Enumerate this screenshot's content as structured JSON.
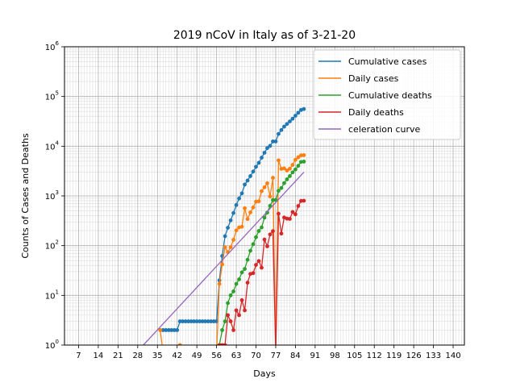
{
  "chart_data": {
    "type": "line",
    "title": "2019 nCoV in Italy as of 3-21-20",
    "xlabel": "Days",
    "ylabel": "Counts of Cases and Deaths",
    "xlim": [
      2,
      144
    ],
    "ylim": [
      1,
      1000000
    ],
    "yscale": "log",
    "grid": true,
    "legend_position": "top-right",
    "x_ticks": [
      7,
      14,
      21,
      28,
      35,
      42,
      49,
      56,
      63,
      70,
      77,
      84,
      91,
      98,
      105,
      112,
      119,
      126,
      133,
      140
    ],
    "x_tick_labels": [
      "7",
      "14",
      "21",
      "28",
      "35",
      "42",
      "49",
      "56",
      "63",
      "70",
      "77",
      "84",
      "91",
      "98",
      "105",
      "112",
      "119",
      "126",
      "133",
      "140"
    ],
    "y_ticks": [
      1,
      10,
      100,
      1000,
      10000,
      100000,
      1000000
    ],
    "y_tick_labels": [
      {
        "base": "10",
        "exp": "0"
      },
      {
        "base": "10",
        "exp": "1"
      },
      {
        "base": "10",
        "exp": "2"
      },
      {
        "base": "10",
        "exp": "3"
      },
      {
        "base": "10",
        "exp": "4"
      },
      {
        "base": "10",
        "exp": "5"
      },
      {
        "base": "10",
        "exp": "6"
      }
    ],
    "series": [
      {
        "name": "Cumulative cases",
        "color": "#1f77b4",
        "markers": true,
        "x": [
          36,
          37,
          38,
          39,
          40,
          41,
          42,
          43,
          44,
          45,
          46,
          47,
          48,
          49,
          50,
          51,
          52,
          53,
          54,
          55,
          56,
          57,
          58,
          59,
          60,
          61,
          62,
          63,
          64,
          65,
          66,
          67,
          68,
          69,
          70,
          71,
          72,
          73,
          74,
          75,
          76,
          77,
          78,
          79,
          80,
          81,
          82,
          83,
          84,
          85,
          86,
          87
        ],
        "y": [
          2,
          2,
          2,
          2,
          2,
          2,
          2,
          3,
          3,
          3,
          3,
          3,
          3,
          3,
          3,
          3,
          3,
          3,
          3,
          3,
          3,
          20,
          62,
          155,
          229,
          322,
          453,
          655,
          888,
          1128,
          1694,
          2036,
          2502,
          3089,
          3858,
          4636,
          5883,
          7375,
          9172,
          10149,
          12462,
          12462,
          17660,
          21157,
          24747,
          27980,
          31506,
          35713,
          41035,
          47021,
          53578,
          56000
        ]
      },
      {
        "name": "Daily cases",
        "color": "#ff7f0e",
        "markers": true,
        "x": [
          36,
          37,
          38,
          39,
          40,
          41,
          42,
          43,
          44,
          45,
          46,
          47,
          48,
          49,
          50,
          51,
          52,
          53,
          54,
          55,
          56,
          57,
          58,
          59,
          60,
          61,
          62,
          63,
          64,
          65,
          66,
          67,
          68,
          69,
          70,
          71,
          72,
          73,
          74,
          75,
          76,
          77,
          78,
          79,
          80,
          81,
          82,
          83,
          84,
          85,
          86,
          87
        ],
        "y": [
          2,
          0,
          0,
          0,
          0,
          0,
          0,
          1,
          0,
          0,
          0,
          0,
          0,
          0,
          0,
          0,
          0,
          0,
          0,
          0,
          0,
          17,
          42,
          93,
          74,
          93,
          131,
          202,
          233,
          240,
          566,
          342,
          466,
          587,
          769,
          778,
          1247,
          1492,
          1797,
          977,
          2313,
          0,
          5198,
          3497,
          3590,
          3233,
          3526,
          4207,
          5322,
          5986,
          6557,
          6600
        ]
      },
      {
        "name": "Cumulative deaths",
        "color": "#2ca02c",
        "markers": true,
        "x": [
          57,
          58,
          59,
          60,
          61,
          62,
          63,
          64,
          65,
          66,
          67,
          68,
          69,
          70,
          71,
          72,
          73,
          74,
          75,
          76,
          77,
          78,
          79,
          80,
          81,
          82,
          83,
          84,
          85,
          86,
          87
        ],
        "y": [
          1,
          2,
          3,
          7,
          10,
          12,
          17,
          21,
          29,
          34,
          52,
          79,
          107,
          148,
          197,
          233,
          366,
          463,
          631,
          827,
          827,
          1266,
          1441,
          1809,
          2158,
          2503,
          2978,
          3405,
          4032,
          4825,
          4900
        ]
      },
      {
        "name": "Daily deaths",
        "color": "#d62728",
        "markers": true,
        "x": [
          57,
          58,
          59,
          60,
          61,
          62,
          63,
          64,
          65,
          66,
          67,
          68,
          69,
          70,
          71,
          72,
          73,
          74,
          75,
          76,
          77,
          78,
          79,
          80,
          81,
          82,
          83,
          84,
          85,
          86,
          87
        ],
        "y": [
          1,
          1,
          1,
          4,
          3,
          2,
          5,
          4,
          8,
          5,
          18,
          27,
          28,
          41,
          49,
          36,
          133,
          97,
          168,
          196,
          0,
          439,
          175,
          368,
          349,
          345,
          475,
          427,
          627,
          793,
          800
        ]
      },
      {
        "name": "celeration curve",
        "color": "#9467bd",
        "markers": false,
        "x": [
          30,
          87
        ],
        "y": [
          1,
          3000
        ]
      }
    ]
  }
}
